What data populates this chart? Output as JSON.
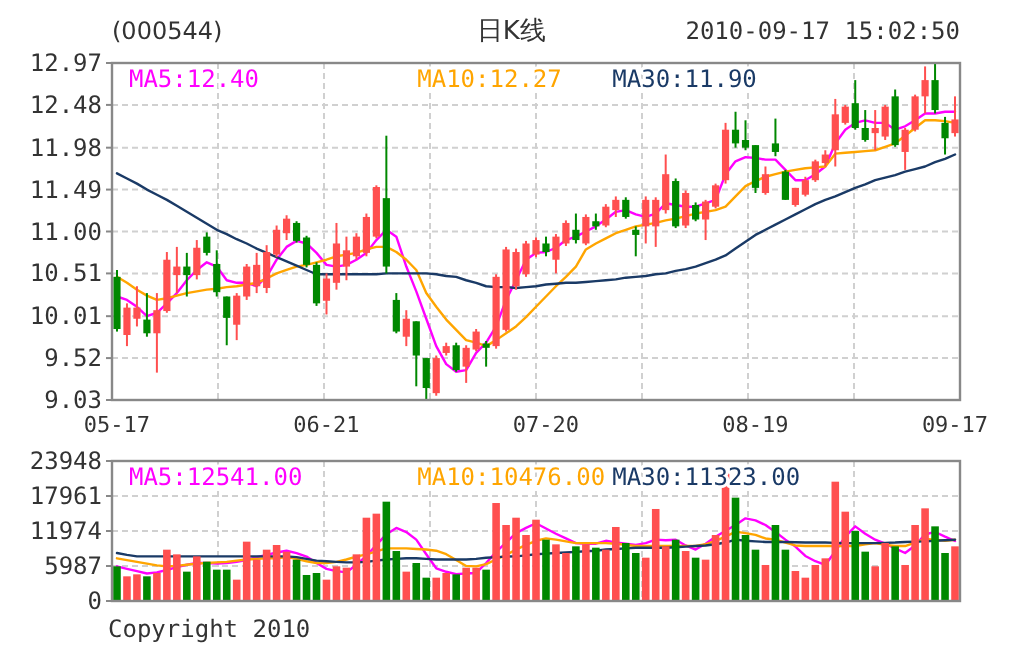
{
  "chart_data": [
    {
      "type": "candlestick",
      "title": "(000544)",
      "subtitle": "日K线",
      "annotations": [
        "2010-09-17 15:02:50"
      ],
      "categories": [
        "05-17",
        null,
        null,
        null,
        null,
        null,
        null,
        null,
        null,
        null,
        null,
        null,
        null,
        null,
        null,
        null,
        null,
        null,
        null,
        null,
        null,
        "06-21",
        null,
        null,
        null,
        null,
        null,
        null,
        null,
        null,
        null,
        null,
        null,
        null,
        null,
        null,
        null,
        null,
        null,
        null,
        null,
        null,
        null,
        "07-20",
        null,
        null,
        null,
        null,
        null,
        null,
        null,
        null,
        null,
        null,
        null,
        null,
        null,
        null,
        null,
        null,
        null,
        null,
        null,
        null,
        "08-19",
        null,
        null,
        null,
        null,
        null,
        null,
        null,
        null,
        null,
        null,
        null,
        null,
        null,
        null,
        null,
        null,
        null,
        null,
        null,
        "09-17"
      ],
      "ohlc": [
        [
          10.47,
          10.55,
          9.83,
          9.86
        ],
        [
          9.79,
          10.16,
          9.66,
          10.11
        ],
        [
          9.98,
          10.36,
          9.89,
          10.11
        ],
        [
          9.97,
          10.28,
          9.77,
          9.81
        ],
        [
          9.81,
          10.28,
          9.35,
          10.08
        ],
        [
          10.07,
          10.76,
          10.05,
          10.67
        ],
        [
          10.49,
          10.82,
          10.28,
          10.59
        ],
        [
          10.59,
          10.75,
          10.24,
          10.49
        ],
        [
          10.49,
          10.9,
          10.44,
          10.81
        ],
        [
          10.94,
          10.99,
          10.72,
          10.75
        ],
        [
          10.62,
          10.78,
          10.24,
          10.29
        ],
        [
          10.24,
          10.24,
          9.67,
          9.99
        ],
        [
          9.91,
          10.28,
          9.73,
          10.25
        ],
        [
          10.24,
          10.62,
          10.2,
          10.59
        ],
        [
          10.36,
          10.75,
          10.28,
          10.61
        ],
        [
          10.34,
          10.84,
          10.28,
          10.76
        ],
        [
          10.73,
          11.07,
          10.7,
          11.02
        ],
        [
          10.98,
          11.19,
          10.9,
          11.15
        ],
        [
          11.1,
          11.12,
          10.87,
          10.89
        ],
        [
          10.93,
          10.95,
          10.58,
          10.61
        ],
        [
          10.61,
          10.64,
          10.13,
          10.16
        ],
        [
          10.19,
          10.51,
          10.03,
          10.45
        ],
        [
          10.4,
          11.1,
          10.32,
          10.86
        ],
        [
          10.59,
          10.94,
          10.43,
          10.78
        ],
        [
          10.71,
          10.98,
          10.67,
          10.94
        ],
        [
          10.75,
          11.21,
          10.71,
          11.17
        ],
        [
          10.94,
          11.54,
          10.92,
          11.52
        ],
        [
          11.39,
          12.12,
          10.51,
          10.59
        ],
        [
          10.2,
          10.28,
          9.81,
          9.83
        ],
        [
          9.77,
          10.08,
          9.66,
          9.98
        ],
        [
          9.95,
          9.95,
          9.19,
          9.55
        ],
        [
          9.52,
          9.52,
          9.04,
          9.17
        ],
        [
          9.11,
          9.55,
          9.08,
          9.52
        ],
        [
          9.58,
          9.7,
          9.55,
          9.66
        ],
        [
          9.67,
          9.7,
          9.36,
          9.38
        ],
        [
          9.42,
          9.67,
          9.23,
          9.64
        ],
        [
          9.62,
          9.86,
          9.6,
          9.83
        ],
        [
          9.69,
          9.72,
          9.42,
          9.64
        ],
        [
          9.66,
          10.5,
          9.63,
          10.47
        ],
        [
          9.85,
          10.82,
          9.83,
          10.79
        ],
        [
          10.36,
          10.8,
          10.32,
          10.76
        ],
        [
          10.5,
          10.89,
          10.47,
          10.86
        ],
        [
          10.73,
          10.93,
          10.7,
          10.9
        ],
        [
          10.86,
          10.94,
          10.71,
          10.76
        ],
        [
          10.67,
          10.97,
          10.51,
          10.94
        ],
        [
          10.86,
          11.13,
          10.83,
          11.1
        ],
        [
          11.02,
          11.21,
          10.86,
          10.9
        ],
        [
          10.86,
          11.2,
          10.84,
          11.17
        ],
        [
          11.12,
          11.21,
          11.02,
          11.06
        ],
        [
          11.07,
          11.32,
          11.05,
          11.29
        ],
        [
          11.25,
          11.41,
          11.17,
          11.37
        ],
        [
          11.37,
          11.4,
          11.15,
          11.17
        ],
        [
          11.02,
          11.06,
          10.71,
          10.96
        ],
        [
          11.06,
          11.41,
          10.86,
          11.37
        ],
        [
          11.06,
          11.4,
          10.82,
          11.37
        ],
        [
          11.25,
          11.9,
          11.21,
          11.67
        ],
        [
          11.59,
          11.62,
          11.04,
          11.06
        ],
        [
          11.07,
          11.48,
          11.04,
          11.45
        ],
        [
          11.31,
          11.34,
          11.12,
          11.14
        ],
        [
          11.14,
          11.37,
          10.9,
          11.35
        ],
        [
          11.29,
          11.56,
          11.27,
          11.54
        ],
        [
          11.6,
          12.27,
          11.56,
          12.19
        ],
        [
          12.19,
          12.4,
          11.98,
          12.03
        ],
        [
          12.07,
          12.3,
          11.95,
          11.98
        ],
        [
          12.01,
          12.01,
          11.45,
          11.51
        ],
        [
          11.45,
          11.76,
          11.43,
          11.67
        ],
        [
          12.03,
          12.32,
          11.88,
          11.93
        ],
        [
          11.7,
          11.72,
          11.37,
          11.37
        ],
        [
          11.31,
          11.51,
          11.29,
          11.51
        ],
        [
          11.43,
          11.64,
          11.41,
          11.6
        ],
        [
          11.6,
          11.84,
          11.58,
          11.82
        ],
        [
          11.8,
          11.95,
          11.76,
          11.9
        ],
        [
          11.95,
          12.55,
          11.76,
          12.37
        ],
        [
          12.27,
          12.48,
          12.25,
          12.46
        ],
        [
          12.5,
          12.77,
          12.19,
          12.21
        ],
        [
          12.21,
          12.42,
          12.05,
          12.07
        ],
        [
          12.15,
          12.42,
          11.95,
          12.21
        ],
        [
          12.11,
          12.48,
          12.07,
          12.46
        ],
        [
          12.58,
          12.66,
          11.99,
          12.01
        ],
        [
          11.93,
          12.21,
          11.72,
          12.19
        ],
        [
          12.19,
          12.6,
          12.17,
          12.58
        ],
        [
          12.58,
          12.93,
          12.38,
          12.77
        ],
        [
          12.77,
          12.96,
          12.38,
          12.42
        ],
        [
          12.27,
          12.34,
          11.9,
          12.09
        ],
        [
          12.15,
          12.58,
          12.11,
          12.31
        ]
      ],
      "colors": [
        "#008800",
        "#ff4f4f",
        "#ff4f4f",
        "#008800",
        "#ff4f4f",
        "#ff4f4f",
        "#ff4f4f",
        "#008800",
        "#ff4f4f",
        "#008800",
        "#008800",
        "#008800",
        "#ff4f4f",
        "#ff4f4f",
        "#ff4f4f",
        "#ff4f4f",
        "#ff4f4f",
        "#ff4f4f",
        "#008800",
        "#008800",
        "#008800",
        "#ff4f4f",
        "#ff4f4f",
        "#ff4f4f",
        "#ff4f4f",
        "#ff4f4f",
        "#ff4f4f",
        "#008800",
        "#008800",
        "#ff4f4f",
        "#008800",
        "#008800",
        "#ff4f4f",
        "#ff4f4f",
        "#008800",
        "#ff4f4f",
        "#ff4f4f",
        "#008800",
        "#ff4f4f",
        "#ff4f4f",
        "#ff4f4f",
        "#ff4f4f",
        "#ff4f4f",
        "#008800",
        "#ff4f4f",
        "#ff4f4f",
        "#008800",
        "#ff4f4f",
        "#008800",
        "#ff4f4f",
        "#ff4f4f",
        "#008800",
        "#008800",
        "#ff4f4f",
        "#ff4f4f",
        "#ff4f4f",
        "#008800",
        "#ff4f4f",
        "#008800",
        "#ff4f4f",
        "#ff4f4f",
        "#ff4f4f",
        "#008800",
        "#008800",
        "#008800",
        "#ff4f4f",
        "#008800",
        "#008800",
        "#ff4f4f",
        "#ff4f4f",
        "#ff4f4f",
        "#ff4f4f",
        "#ff4f4f",
        "#ff4f4f",
        "#008800",
        "#008800",
        "#ff4f4f",
        "#ff4f4f",
        "#008800",
        "#ff4f4f",
        "#ff4f4f",
        "#ff4f4f",
        "#008800",
        "#008800",
        "#ff4f4f"
      ],
      "series": [
        {
          "name": "MA5:12.40",
          "type": "line",
          "color": "#ff00ff",
          "values": [
            10.24,
            10.2,
            10.12,
            10.01,
            10.05,
            10.16,
            10.28,
            10.43,
            10.55,
            10.64,
            10.59,
            10.43,
            10.4,
            10.4,
            10.36,
            10.47,
            10.67,
            10.82,
            10.89,
            10.86,
            10.75,
            10.61,
            10.59,
            10.61,
            10.67,
            10.75,
            10.9,
            11.02,
            10.94,
            10.59,
            10.3,
            9.98,
            9.66,
            9.45,
            9.36,
            9.38,
            9.58,
            9.7,
            9.89,
            10.2,
            10.43,
            10.67,
            10.75,
            10.76,
            10.81,
            10.9,
            10.94,
            11.0,
            11.06,
            11.14,
            11.23,
            11.25,
            11.2,
            11.17,
            11.21,
            11.33,
            11.31,
            11.29,
            11.29,
            11.33,
            11.37,
            11.67,
            11.82,
            11.87,
            11.86,
            11.84,
            11.84,
            11.72,
            11.6,
            11.6,
            11.67,
            11.76,
            12.03,
            12.19,
            12.27,
            12.3,
            12.27,
            12.27,
            12.19,
            12.23,
            12.3,
            12.38,
            12.38,
            12.4,
            12.4
          ]
        },
        {
          "name": "MA10:12.27",
          "type": "line",
          "color": "#ffa500",
          "values": [
            10.47,
            10.4,
            10.32,
            10.25,
            10.2,
            10.22,
            10.25,
            10.28,
            10.3,
            10.32,
            10.33,
            10.35,
            10.36,
            10.38,
            10.4,
            10.45,
            10.51,
            10.55,
            10.59,
            10.61,
            10.64,
            10.67,
            10.71,
            10.73,
            10.75,
            10.79,
            10.82,
            10.82,
            10.76,
            10.67,
            10.55,
            10.28,
            10.12,
            9.97,
            9.85,
            9.73,
            9.7,
            9.66,
            9.73,
            9.81,
            9.89,
            10.0,
            10.12,
            10.24,
            10.36,
            10.47,
            10.59,
            10.79,
            10.86,
            10.92,
            10.98,
            11.02,
            11.06,
            11.08,
            11.1,
            11.13,
            11.15,
            11.18,
            11.21,
            11.23,
            11.25,
            11.29,
            11.41,
            11.53,
            11.59,
            11.64,
            11.67,
            11.7,
            11.72,
            11.74,
            11.75,
            11.76,
            11.91,
            11.92,
            11.93,
            11.94,
            11.95,
            11.99,
            12.03,
            12.12,
            12.21,
            12.3,
            12.3,
            12.29,
            12.27
          ]
        },
        {
          "name": "MA30:11.90",
          "type": "line",
          "color": "#1a3a66",
          "values": [
            11.68,
            11.62,
            11.56,
            11.49,
            11.43,
            11.37,
            11.3,
            11.23,
            11.16,
            11.09,
            11.02,
            10.97,
            10.91,
            10.86,
            10.8,
            10.75,
            10.7,
            10.65,
            10.6,
            10.55,
            10.5,
            10.5,
            10.5,
            10.5,
            10.5,
            10.5,
            10.5,
            10.51,
            10.51,
            10.51,
            10.51,
            10.51,
            10.5,
            10.48,
            10.47,
            10.43,
            10.4,
            10.36,
            10.35,
            10.35,
            10.34,
            10.35,
            10.36,
            10.38,
            10.39,
            10.4,
            10.4,
            10.41,
            10.42,
            10.43,
            10.44,
            10.46,
            10.47,
            10.48,
            10.5,
            10.51,
            10.54,
            10.56,
            10.59,
            10.63,
            10.67,
            10.72,
            10.8,
            10.88,
            10.96,
            11.02,
            11.08,
            11.14,
            11.2,
            11.26,
            11.32,
            11.37,
            11.41,
            11.46,
            11.51,
            11.55,
            11.6,
            11.63,
            11.66,
            11.7,
            11.73,
            11.76,
            11.81,
            11.85,
            11.9
          ]
        }
      ],
      "ylim": [
        9.03,
        12.97
      ],
      "yticks": [
        9.03,
        9.52,
        10.01,
        10.51,
        {
          "value": 11,
          "label": "11.00"
        },
        11.49,
        11.98,
        12.48,
        12.97
      ],
      "grid": true,
      "legend": "top"
    },
    {
      "type": "bar",
      "annotations": [
        "Copyright 2010"
      ],
      "tick_labels": "y",
      "categories": [
        null,
        null,
        null,
        null,
        null,
        null,
        null,
        null,
        null,
        null,
        null,
        null,
        null,
        null,
        null,
        null,
        null,
        null,
        null,
        null,
        null,
        null,
        null,
        null,
        null,
        null,
        null,
        null,
        null,
        null,
        null,
        null,
        null,
        null,
        null,
        null,
        null,
        null,
        null,
        null,
        null,
        null,
        null,
        null,
        null,
        null,
        null,
        null,
        null,
        null,
        null,
        null,
        null,
        null,
        null,
        null,
        null,
        null,
        null,
        null,
        null,
        null,
        null,
        null,
        null,
        null,
        null,
        null,
        null,
        null,
        null,
        null,
        null,
        null,
        null,
        null,
        null,
        null,
        null,
        null,
        null,
        null,
        null,
        null,
        null
      ],
      "values": [
        5930,
        4220,
        4560,
        4220,
        4790,
        8780,
        7980,
        5020,
        7640,
        6730,
        5360,
        5360,
        3650,
        10150,
        7070,
        8780,
        9580,
        8440,
        7070,
        4450,
        4790,
        3650,
        5930,
        5700,
        7980,
        14250,
        14940,
        16990,
        8550,
        5020,
        6500,
        3990,
        3990,
        4790,
        4560,
        5700,
        5700,
        5360,
        16760,
        13000,
        14250,
        11290,
        13910,
        10490,
        9690,
        8210,
        9350,
        9690,
        9120,
        8780,
        12660,
        9920,
        8210,
        7410,
        15740,
        9350,
        10490,
        8550,
        7410,
        7070,
        11290,
        22120,
        17680,
        11290,
        8780,
        6160,
        13000,
        8780,
        5130,
        3990,
        6160,
        7300,
        20410,
        15280,
        11970,
        8440,
        5930,
        9920,
        9350,
        6160,
        13000,
        15850,
        12770,
        8210,
        9350
      ],
      "colors": [
        "#008800",
        "#ff4f4f",
        "#ff4f4f",
        "#008800",
        "#ff4f4f",
        "#ff4f4f",
        "#ff4f4f",
        "#008800",
        "#ff4f4f",
        "#008800",
        "#008800",
        "#008800",
        "#ff4f4f",
        "#ff4f4f",
        "#ff4f4f",
        "#ff4f4f",
        "#ff4f4f",
        "#ff4f4f",
        "#008800",
        "#008800",
        "#008800",
        "#ff4f4f",
        "#ff4f4f",
        "#ff4f4f",
        "#ff4f4f",
        "#ff4f4f",
        "#ff4f4f",
        "#008800",
        "#008800",
        "#ff4f4f",
        "#008800",
        "#008800",
        "#ff4f4f",
        "#ff4f4f",
        "#008800",
        "#ff4f4f",
        "#ff4f4f",
        "#008800",
        "#ff4f4f",
        "#ff4f4f",
        "#ff4f4f",
        "#ff4f4f",
        "#ff4f4f",
        "#008800",
        "#ff4f4f",
        "#ff4f4f",
        "#008800",
        "#ff4f4f",
        "#008800",
        "#ff4f4f",
        "#ff4f4f",
        "#008800",
        "#008800",
        "#ff4f4f",
        "#ff4f4f",
        "#ff4f4f",
        "#008800",
        "#ff4f4f",
        "#008800",
        "#ff4f4f",
        "#ff4f4f",
        "#ff4f4f",
        "#008800",
        "#008800",
        "#008800",
        "#ff4f4f",
        "#008800",
        "#008800",
        "#ff4f4f",
        "#ff4f4f",
        "#ff4f4f",
        "#ff4f4f",
        "#ff4f4f",
        "#ff4f4f",
        "#008800",
        "#008800",
        "#ff4f4f",
        "#ff4f4f",
        "#008800",
        "#ff4f4f",
        "#ff4f4f",
        "#ff4f4f",
        "#008800",
        "#008800",
        "#ff4f4f"
      ],
      "series": [
        {
          "name": "MA5:12541.00",
          "type": "line",
          "color": "#ff00ff",
          "values": [
            5930,
            5500,
            5100,
            4700,
            4900,
            5300,
            5800,
            6200,
            6500,
            6500,
            6400,
            6500,
            6700,
            7000,
            7500,
            7900,
            8300,
            8600,
            8200,
            7600,
            6500,
            5500,
            5100,
            4900,
            6200,
            7700,
            9600,
            11400,
            12500,
            11800,
            10500,
            8000,
            5600,
            5000,
            4600,
            4700,
            4800,
            6500,
            8400,
            10000,
            11600,
            12500,
            13300,
            12400,
            11500,
            10700,
            9900,
            9800,
            9800,
            10300,
            10000,
            9800,
            9600,
            9900,
            10500,
            10400,
            10490,
            9500,
            8800,
            9800,
            11000,
            12000,
            13000,
            14140,
            13800,
            13000,
            11800,
            10500,
            9300,
            7700,
            6800,
            6160,
            8500,
            11000,
            12770,
            11500,
            10490,
            9800,
            9000,
            8210,
            9500,
            11400,
            11800,
            11000,
            10260
          ]
        },
        {
          "name": "MA10:10476.00",
          "type": "line",
          "color": "#ffa500",
          "values": [
            7300,
            7000,
            6700,
            6400,
            6100,
            5930,
            6000,
            6200,
            6400,
            6500,
            6600,
            6700,
            6900,
            7100,
            7200,
            7300,
            7300,
            7500,
            7200,
            6800,
            6500,
            6500,
            6700,
            7100,
            7600,
            7980,
            8500,
            9000,
            9000,
            9000,
            8900,
            8800,
            8600,
            8000,
            7000,
            6000,
            5930,
            6300,
            7100,
            7900,
            8780,
            9600,
            10300,
            10720,
            10500,
            10200,
            9900,
            9900,
            9900,
            9900,
            9800,
            9600,
            9400,
            9400,
            9400,
            9400,
            9400,
            9400,
            9400,
            9700,
            10300,
            11000,
            11860,
            11600,
            11300,
            10700,
            10500,
            10000,
            9500,
            9400,
            9400,
            9400,
            9400,
            9400,
            9400,
            9700,
            9900,
            9600,
            9400,
            9400,
            10000,
            10600,
            10500,
            10300,
            10476
          ]
        },
        {
          "name": "MA30:11323.00",
          "type": "line",
          "color": "#1a3a66",
          "values": [
            8210,
            7900,
            7640,
            7640,
            7640,
            7640,
            7640,
            7640,
            7640,
            7640,
            7640,
            7640,
            7640,
            7640,
            7640,
            7640,
            7640,
            7640,
            7500,
            7200,
            6900,
            6800,
            6700,
            6600,
            6600,
            6700,
            6900,
            7100,
            7200,
            7300,
            7300,
            7200,
            7100,
            7100,
            7100,
            7100,
            7200,
            7400,
            7500,
            7600,
            7640,
            7800,
            8000,
            8100,
            8200,
            8300,
            8400,
            8500,
            8600,
            8800,
            8900,
            9000,
            9120,
            9120,
            9120,
            9120,
            9200,
            9300,
            9400,
            9500,
            9700,
            10000,
            10490,
            10300,
            10200,
            10100,
            10100,
            10100,
            10050,
            10000,
            10000,
            10000,
            9950,
            9900,
            9900,
            9900,
            9900,
            9950,
            10000,
            10100,
            10150,
            10200,
            10300,
            10400,
            10490
          ]
        }
      ],
      "ylim": [
        0,
        23948
      ],
      "yticks": [
        0,
        5987,
        11974,
        17961,
        23948
      ],
      "grid": true,
      "legend": "top"
    }
  ]
}
